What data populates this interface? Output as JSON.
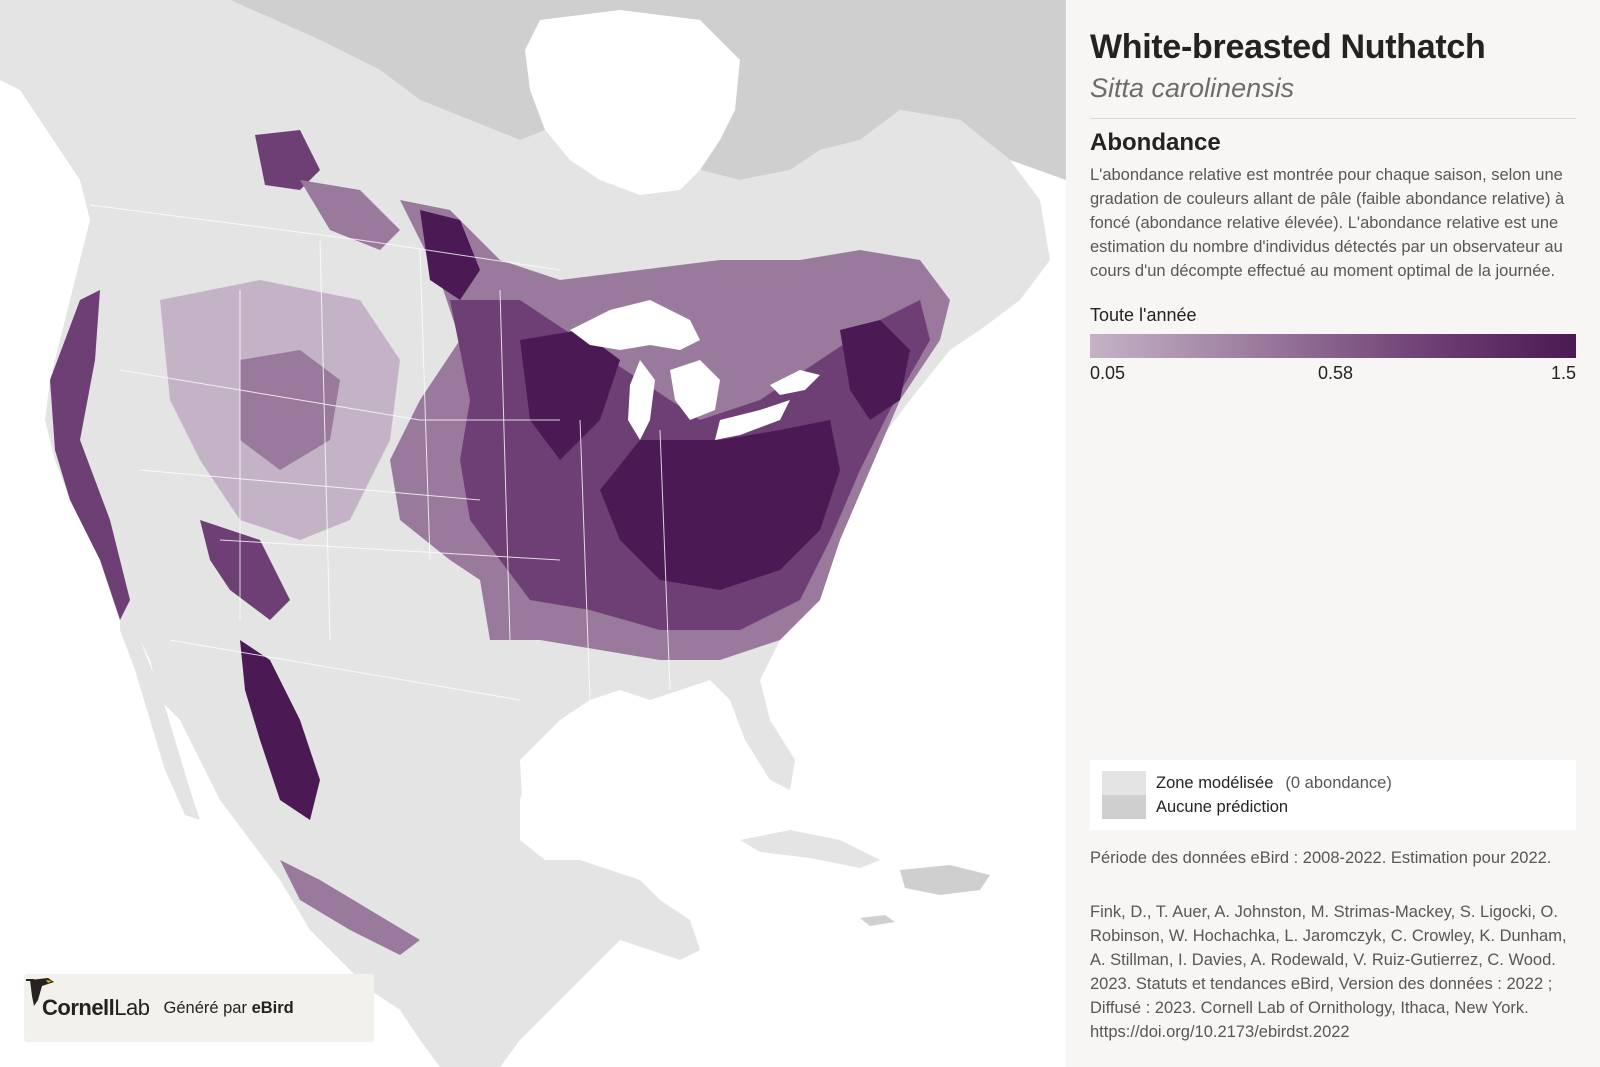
{
  "species": {
    "common_name": "White-breasted Nuthatch",
    "scientific_name": "Sitta carolinensis"
  },
  "abundance": {
    "heading": "Abondance",
    "description": "L'abondance relative est montrée pour chaque saison, selon une gradation de couleurs allant de pâle (faible abondance relative) à foncé (abondance relative élevée). L'abondance relative est une estimation du nombre d'individus détectés par un observateur au cours d'un décompte effectué au moment optimal de la journée.",
    "season_label": "Toute l'année",
    "scale_min": "0.05",
    "scale_mid": "0.58",
    "scale_max": "1.5",
    "colors": {
      "low": "#c4b3c6",
      "mid": "#9a7a9c",
      "high": "#4b1953"
    }
  },
  "legend": {
    "modeled_label": "Zone modélisée",
    "modeled_note": "(0 abondance)",
    "modeled_color": "#e4e4e4",
    "no_prediction_label": "Aucune prédiction",
    "no_prediction_color": "#cfcfcf"
  },
  "data_period": "Période des données eBird : 2008-2022. Estimation pour 2022.",
  "citation": "Fink, D., T. Auer, A. Johnston, M. Strimas-Mackey, S. Ligocki, O. Robinson, W. Hochachka, L. Jaromczyk, C. Crowley, K. Dunham, A. Stillman, I. Davies, A. Rodewald, V. Ruiz-Gutierrez, C. Wood. 2023. Statuts et tendances eBird, Version des données : 2022 ; Diffusé : 2023. Cornell Lab of Ornithology, Ithaca, New York. https://doi.org/10.2173/ebirdst.2022",
  "branding": {
    "logo_bold": "Cornell",
    "logo_light": "Lab",
    "powered_prefix": "Généré par ",
    "powered_brand": "eBird"
  },
  "icons": {
    "logo": "cornell-lab-bird-icon"
  }
}
